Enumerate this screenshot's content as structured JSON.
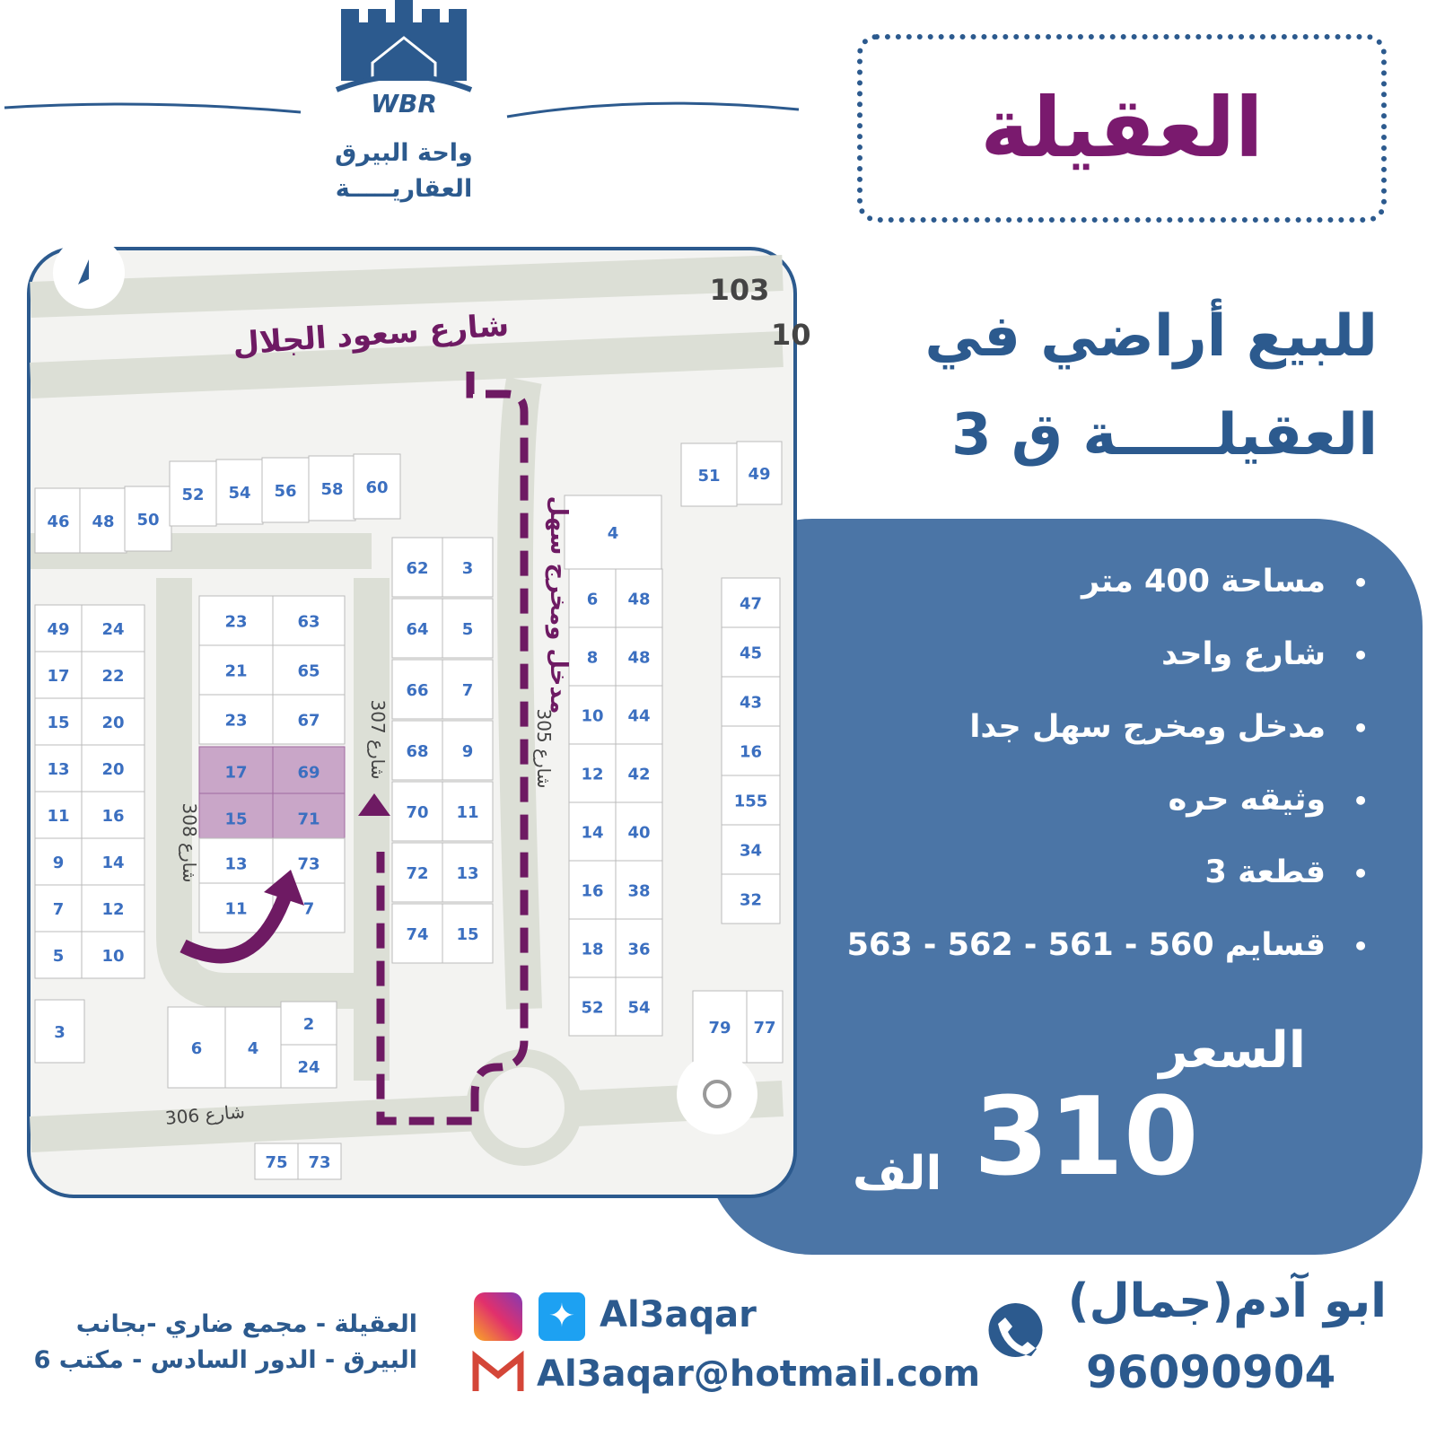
{
  "logo": {
    "text": "WBR",
    "name_line1": "واحة البيرق",
    "name_line2": "العقاريـــــة"
  },
  "title": "العقيلة",
  "headline": {
    "line1": "للبيع أراضي في",
    "line2": "العقيلـــــة ق 3"
  },
  "features": [
    "مساحة 400 متر",
    "شارع واحد",
    "مدخل ومخرج سهل جدا",
    "وثيقه حره",
    "قطعة 3",
    "قسايم 560 - 561 - 562 - 563"
  ],
  "price": {
    "label": "السعر",
    "value": "310",
    "unit": "الف"
  },
  "map": {
    "street_main": "شارع سعود الجلال",
    "entrance_label": "مدخل ومخرج سهل",
    "road_number": "103",
    "road_number_2": "10",
    "streets": [
      "شارع 307",
      "شارع 308",
      "شارع 306",
      "شارع 305"
    ],
    "plots": [
      "46",
      "48",
      "50",
      "52",
      "54",
      "56",
      "58",
      "60",
      "62",
      "3",
      "64",
      "5",
      "66",
      "7",
      "68",
      "9",
      "70",
      "11",
      "72",
      "13",
      "74",
      "15",
      "23",
      "63",
      "21",
      "65",
      "23",
      "67",
      "17",
      "69",
      "15",
      "71",
      "13",
      "73",
      "11",
      "7",
      "49",
      "24",
      "17",
      "22",
      "15",
      "20",
      "13",
      "20",
      "11",
      "16",
      "9",
      "14",
      "7",
      "12",
      "5",
      "10",
      "3",
      "6",
      "4",
      "2",
      "24",
      "4",
      "6",
      "48",
      "8",
      "48",
      "10",
      "44",
      "12",
      "42",
      "14",
      "40",
      "16",
      "38",
      "18",
      "36",
      "52",
      "54",
      "51",
      "49",
      "47",
      "45",
      "43",
      "16",
      "155",
      "34",
      "32",
      "79",
      "77",
      "75",
      "73"
    ],
    "highlight_color": "#c9a6c8",
    "route_color": "#6e1a63"
  },
  "contact": {
    "name": "ابو آدم(جمال)",
    "phone": "96090904",
    "social": "Al3aqar",
    "email": "Al3aqar@hotmail.com",
    "address_line1": "العقيلة - مجمع ضاري -بجانب",
    "address_line2": "البيرق - الدور السادس - مكتب 6"
  },
  "colors": {
    "brand_blue": "#2c5a8e",
    "panel_blue": "#4b75a6",
    "title_purple": "#7a1a6e"
  }
}
